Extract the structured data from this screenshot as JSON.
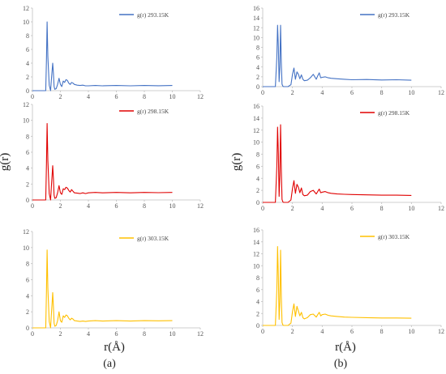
{
  "figure": {
    "y_axis_label": "g(r)",
    "x_axis_label": "r(Å)",
    "panel_labels": [
      "(a)",
      "(b)"
    ]
  },
  "colors": {
    "series_293": "#4472C4",
    "series_298": "#E00000",
    "series_303": "#FFC000",
    "axis": "#bfbfbf"
  },
  "chart_data": [
    {
      "type": "line",
      "panel": "(a)",
      "ylim": [
        0,
        12
      ],
      "xlim": [
        0,
        12
      ],
      "yticks": [
        0,
        2,
        4,
        6,
        8,
        10,
        12
      ],
      "xticks": [
        0,
        2,
        4,
        6,
        8,
        10,
        12
      ],
      "series": [
        {
          "name": "g(r) 293.15K",
          "x": [
            0,
            0.95,
            1.0,
            1.05,
            1.1,
            1.2,
            1.3,
            1.35,
            1.4,
            1.45,
            1.5,
            1.55,
            1.6,
            1.7,
            1.8,
            1.9,
            2.0,
            2.1,
            2.2,
            2.3,
            2.4,
            2.5,
            2.6,
            2.7,
            2.8,
            2.9,
            3.0,
            3.2,
            3.4,
            3.6,
            3.8,
            4.0,
            4.5,
            5.0,
            6.0,
            7.0,
            8.0,
            9.0,
            10.0
          ],
          "y": [
            0,
            0,
            4.5,
            10.0,
            5.0,
            0.8,
            0,
            1.5,
            2.8,
            4.0,
            2.5,
            0.6,
            0.2,
            0.3,
            0.9,
            1.8,
            0.9,
            0.6,
            1.4,
            1.2,
            1.6,
            1.5,
            1.1,
            0.9,
            1.2,
            1.1,
            0.9,
            0.8,
            0.75,
            0.8,
            0.7,
            0.7,
            0.75,
            0.7,
            0.75,
            0.7,
            0.75,
            0.72,
            0.75
          ]
        }
      ]
    },
    {
      "type": "line",
      "panel": "(b)",
      "ylim": [
        0,
        16
      ],
      "xlim": [
        0,
        12
      ],
      "yticks": [
        0,
        2,
        4,
        6,
        8,
        10,
        12,
        14,
        16
      ],
      "xticks": [
        0,
        2,
        4,
        6,
        8,
        10,
        12
      ],
      "series": [
        {
          "name": "g(r) 293.15K",
          "x": [
            0,
            0.85,
            0.95,
            1.0,
            1.05,
            1.1,
            1.15,
            1.2,
            1.25,
            1.3,
            1.35,
            1.4,
            1.5,
            1.7,
            1.9,
            2.0,
            2.1,
            2.2,
            2.3,
            2.4,
            2.5,
            2.6,
            2.7,
            2.8,
            3.0,
            3.2,
            3.4,
            3.6,
            3.7,
            3.8,
            3.9,
            4.0,
            4.2,
            4.4,
            4.6,
            5.0,
            5.5,
            6.0,
            7.0,
            8.0,
            9.0,
            10.0
          ],
          "y": [
            0,
            0,
            6.0,
            12.5,
            8.0,
            1.0,
            4.0,
            12.5,
            5.0,
            0.5,
            0.1,
            0,
            0,
            0,
            0.4,
            2.5,
            3.8,
            1.5,
            3.0,
            2.5,
            1.6,
            2.4,
            1.5,
            1.2,
            1.3,
            1.8,
            2.5,
            1.5,
            2.2,
            2.8,
            1.8,
            1.9,
            2.0,
            1.8,
            1.7,
            1.6,
            1.5,
            1.4,
            1.45,
            1.35,
            1.4,
            1.3
          ]
        }
      ]
    },
    {
      "type": "line",
      "panel": "(a)",
      "ylim": [
        0,
        12
      ],
      "xlim": [
        0,
        12
      ],
      "yticks": [
        0,
        2,
        4,
        6,
        8,
        10,
        12
      ],
      "xticks": [
        0,
        2,
        4,
        6,
        8,
        10,
        12
      ],
      "series": [
        {
          "name": "g(r) 298.15K",
          "x": [
            0,
            0.95,
            1.0,
            1.05,
            1.1,
            1.2,
            1.3,
            1.35,
            1.4,
            1.45,
            1.5,
            1.55,
            1.6,
            1.7,
            1.8,
            1.9,
            2.0,
            2.1,
            2.2,
            2.3,
            2.4,
            2.5,
            2.6,
            2.7,
            2.8,
            2.9,
            3.0,
            3.2,
            3.4,
            3.6,
            3.8,
            4.0,
            4.5,
            5.0,
            6.0,
            7.0,
            8.0,
            9.0,
            10.0
          ],
          "y": [
            0,
            0,
            4.5,
            9.6,
            5.0,
            0.8,
            0,
            1.6,
            3.0,
            4.3,
            2.6,
            0.6,
            0.2,
            0.3,
            0.9,
            1.8,
            0.9,
            0.7,
            1.4,
            1.3,
            1.6,
            1.5,
            1.2,
            1.0,
            1.3,
            1.1,
            0.9,
            0.85,
            0.8,
            0.9,
            0.8,
            0.9,
            0.95,
            0.9,
            0.95,
            0.9,
            0.95,
            0.92,
            0.95
          ]
        }
      ]
    },
    {
      "type": "line",
      "panel": "(b)",
      "ylim": [
        0,
        16
      ],
      "xlim": [
        0,
        12
      ],
      "yticks": [
        0,
        2,
        4,
        6,
        8,
        10,
        12,
        14,
        16
      ],
      "xticks": [
        0,
        2,
        4,
        6,
        8,
        10,
        12
      ],
      "series": [
        {
          "name": "g(r) 298.15K",
          "x": [
            0,
            0.85,
            0.95,
            1.0,
            1.05,
            1.1,
            1.15,
            1.2,
            1.25,
            1.3,
            1.35,
            1.4,
            1.5,
            1.7,
            1.9,
            2.0,
            2.1,
            2.2,
            2.3,
            2.4,
            2.5,
            2.6,
            2.7,
            2.8,
            3.0,
            3.2,
            3.4,
            3.6,
            3.7,
            3.8,
            3.9,
            4.0,
            4.2,
            4.4,
            4.6,
            5.0,
            5.5,
            6.0,
            7.0,
            8.0,
            9.0,
            10.0
          ],
          "y": [
            0,
            0,
            6.0,
            12.5,
            8.0,
            1.0,
            4.5,
            12.9,
            5.5,
            0.5,
            0.1,
            0,
            0,
            0,
            0.4,
            2.3,
            3.6,
            1.5,
            3.0,
            2.5,
            1.6,
            2.4,
            1.3,
            1.1,
            1.2,
            1.8,
            2.0,
            1.4,
            1.8,
            2.2,
            1.6,
            1.7,
            1.8,
            1.6,
            1.5,
            1.4,
            1.35,
            1.3,
            1.25,
            1.2,
            1.2,
            1.15
          ]
        }
      ]
    },
    {
      "type": "line",
      "panel": "(a)",
      "ylim": [
        0,
        12
      ],
      "xlim": [
        0,
        12
      ],
      "yticks": [
        0,
        2,
        4,
        6,
        8,
        10,
        12
      ],
      "xticks": [
        0,
        2,
        4,
        6,
        8,
        10,
        12
      ],
      "series": [
        {
          "name": "g(r) 303.15K",
          "x": [
            0,
            0.95,
            1.0,
            1.05,
            1.1,
            1.2,
            1.3,
            1.35,
            1.4,
            1.45,
            1.5,
            1.55,
            1.6,
            1.7,
            1.8,
            1.9,
            2.0,
            2.1,
            2.2,
            2.3,
            2.4,
            2.5,
            2.6,
            2.7,
            2.8,
            2.9,
            3.0,
            3.2,
            3.4,
            3.6,
            3.8,
            4.0,
            4.5,
            5.0,
            6.0,
            7.0,
            8.0,
            9.0,
            10.0
          ],
          "y": [
            0,
            0,
            4.5,
            9.7,
            5.0,
            0.8,
            0,
            1.6,
            3.0,
            4.4,
            2.6,
            0.6,
            0.2,
            0.3,
            0.9,
            2.0,
            0.9,
            0.7,
            1.5,
            1.3,
            1.6,
            1.5,
            1.2,
            1.0,
            1.2,
            1.1,
            0.9,
            0.85,
            0.8,
            0.85,
            0.8,
            0.85,
            0.9,
            0.85,
            0.9,
            0.85,
            0.9,
            0.88,
            0.9
          ]
        }
      ]
    },
    {
      "type": "line",
      "panel": "(b)",
      "ylim": [
        0,
        16
      ],
      "xlim": [
        0,
        12
      ],
      "yticks": [
        0,
        2,
        4,
        6,
        8,
        10,
        12,
        14,
        16
      ],
      "xticks": [
        0,
        2,
        4,
        6,
        8,
        10,
        12
      ],
      "series": [
        {
          "name": "g(r)  303.15K",
          "x": [
            0,
            0.85,
            0.95,
            1.0,
            1.05,
            1.1,
            1.15,
            1.2,
            1.25,
            1.3,
            1.35,
            1.4,
            1.5,
            1.7,
            1.9,
            2.0,
            2.1,
            2.2,
            2.3,
            2.4,
            2.5,
            2.6,
            2.7,
            2.8,
            3.0,
            3.2,
            3.4,
            3.6,
            3.7,
            3.8,
            3.9,
            4.0,
            4.2,
            4.4,
            4.6,
            5.0,
            5.5,
            6.0,
            7.0,
            8.0,
            9.0,
            10.0
          ],
          "y": [
            0,
            0,
            6.0,
            13.2,
            8.0,
            1.0,
            4.0,
            12.6,
            5.0,
            0.5,
            0.1,
            0,
            0,
            0,
            0.4,
            2.3,
            3.6,
            1.5,
            3.2,
            2.4,
            1.6,
            2.2,
            1.3,
            1.1,
            1.3,
            1.8,
            1.9,
            1.4,
            1.8,
            2.2,
            1.6,
            1.8,
            1.9,
            1.7,
            1.6,
            1.5,
            1.4,
            1.35,
            1.3,
            1.25,
            1.25,
            1.2
          ]
        }
      ]
    }
  ]
}
